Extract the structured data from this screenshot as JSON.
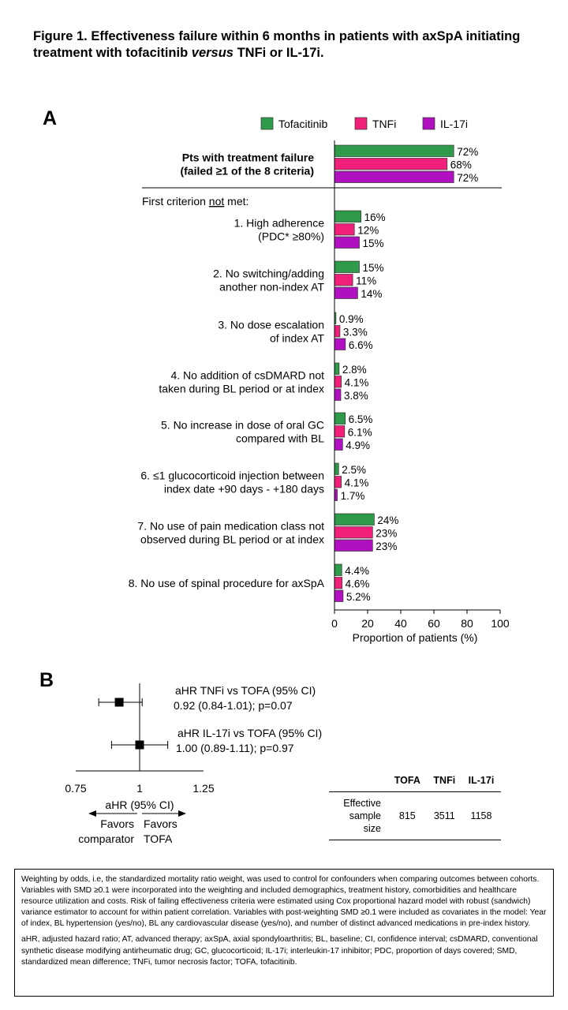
{
  "figure_title_part1": "Figure 1. Effectiveness failure within 6 months in patients with axSpA initiating treatment with tofacitinib ",
  "figure_title_italic": "versus",
  "figure_title_part2": " TNFi or IL-17i.",
  "panel_a_label": "A",
  "panel_b_label": "B",
  "colors": {
    "tofacitinib": "#2e9a4a",
    "tnfi": "#f0207a",
    "il17i": "#b010c0"
  },
  "chart_data": [
    {
      "type": "bar",
      "orientation": "horizontal",
      "legend": [
        "Tofacitinib",
        "TNFi",
        "IL-17i"
      ],
      "legend_position": "top-right",
      "xlabel": "Proportion of patients (%)",
      "xlim": [
        0,
        100
      ],
      "xticks": [
        "0",
        "20",
        "40",
        "60",
        "80",
        "100"
      ],
      "section_header_parts": [
        "First criterion ",
        "not",
        " met:"
      ],
      "categories": [
        {
          "lines": [
            "Pts with treatment failure",
            "(failed ≥1 of the 8 criteria)"
          ],
          "bold": true,
          "values": [
            72,
            68,
            72
          ],
          "labels": [
            "72%",
            "68%",
            "72%"
          ]
        },
        {
          "lines": [
            "1. High adherence",
            "(PDC* ≥80%)"
          ],
          "values": [
            16,
            12,
            15
          ],
          "labels": [
            "16%",
            "12%",
            "15%"
          ]
        },
        {
          "lines": [
            "2. No switching/adding",
            "another non-index AT"
          ],
          "values": [
            15,
            11,
            14
          ],
          "labels": [
            "15%",
            "11%",
            "14%"
          ]
        },
        {
          "lines": [
            "3. No dose escalation",
            "of index AT"
          ],
          "values": [
            0.9,
            3.3,
            6.6
          ],
          "labels": [
            "0.9%",
            "3.3%",
            "6.6%"
          ]
        },
        {
          "lines": [
            "4. No addition of csDMARD not",
            "taken during BL period or at index"
          ],
          "values": [
            2.8,
            4.1,
            3.8
          ],
          "labels": [
            "2.8%",
            "4.1%",
            "3.8%"
          ]
        },
        {
          "lines": [
            "5. No increase in dose of oral GC",
            "compared with BL"
          ],
          "values": [
            6.5,
            6.1,
            4.9
          ],
          "labels": [
            "6.5%",
            "6.1%",
            "4.9%"
          ]
        },
        {
          "lines": [
            "6. ≤1 glucocorticoid injection between",
            "index date +90 days - +180 days"
          ],
          "values": [
            2.5,
            4.1,
            1.7
          ],
          "labels": [
            "2.5%",
            "4.1%",
            "1.7%"
          ]
        },
        {
          "lines": [
            "7. No use of pain medication class not",
            "observed during BL period or at index"
          ],
          "values": [
            24,
            23,
            23
          ],
          "labels": [
            "24%",
            "23%",
            "23%"
          ]
        },
        {
          "lines": [
            "8. No use of spinal procedure for axSpA"
          ],
          "values": [
            4.4,
            4.6,
            5.2
          ],
          "labels": [
            "4.4%",
            "4.6%",
            "5.2%"
          ]
        }
      ]
    },
    {
      "type": "scatter",
      "subtype": "forest",
      "xlabel": "aHR (95% CI)",
      "xlim": [
        0.75,
        1.25
      ],
      "xticks": [
        "0.75",
        "1",
        "1.25"
      ],
      "reference_line": 1,
      "favors_left": [
        "Favors",
        "comparator"
      ],
      "favors_right": [
        "Favors",
        "TOFA"
      ],
      "points": [
        {
          "label": "aHR TNFi vs TOFA (95% CI)",
          "text": "0.92 (0.84-1.01); p=0.07",
          "est": 0.92,
          "lo": 0.84,
          "hi": 1.01
        },
        {
          "label": "aHR IL-17i vs TOFA (95% CI)",
          "text": "1.00 (0.89-1.11); p=0.97",
          "est": 1.0,
          "lo": 0.89,
          "hi": 1.11
        }
      ]
    }
  ],
  "sample_table": {
    "headers": [
      "TOFA",
      "TNFi",
      "IL-17i"
    ],
    "row_label_line1": "Effective",
    "row_label_line2": "sample size",
    "values": [
      "815",
      "3511",
      "1158"
    ]
  },
  "footnote_para1": "Weighting by odds, i.e, the standardized mortality ratio weight, was used to control for confounders when comparing outcomes between cohorts. Variables with SMD ≥0.1 were incorporated into the weighting and included demographics, treatment history, comorbidities and healthcare resource utilization and costs. Risk of failing effectiveness criteria were estimated using Cox proportional hazard model with robust (sandwich) variance estimator to account for within patient correlation. Variables with post-weighting SMD ≥0.1 were included as covariates in the model: Year of index, BL hypertension (yes/no), BL any cardiovascular disease (yes/no), and number of distinct advanced medications in pre-index history.",
  "footnote_para2": "aHR, adjusted hazard ratio; AT, advanced therapy; axSpA, axial spondyloarthritis; BL, baseline; CI, confidence interval; csDMARD, conventional synthetic disease modifying antirheumatic drug; GC, glucocorticoid; IL-17i; interleukin-17 inhibitor; PDC, proportion of days covered; SMD, standardized mean difference; TNFi, tumor necrosis factor; TOFA, tofacitinib."
}
